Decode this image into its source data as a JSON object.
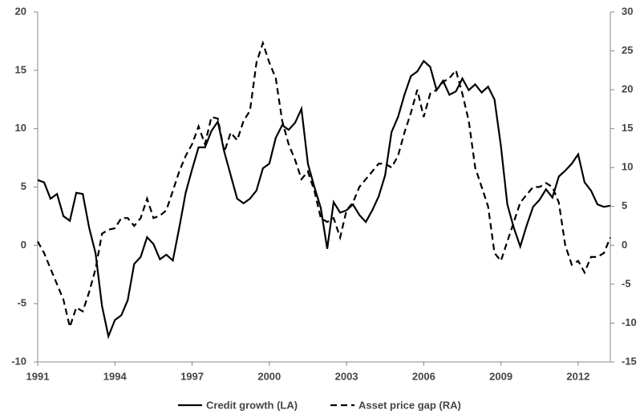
{
  "chart_data": {
    "type": "line",
    "x": [
      1991,
      1991.25,
      1991.5,
      1991.75,
      1992,
      1992.25,
      1992.5,
      1992.75,
      1993,
      1993.25,
      1993.5,
      1993.75,
      1994,
      1994.25,
      1994.5,
      1994.75,
      1995,
      1995.25,
      1995.5,
      1995.75,
      1996,
      1996.25,
      1996.5,
      1996.75,
      1997,
      1997.25,
      1997.5,
      1997.75,
      1998,
      1998.25,
      1998.5,
      1998.75,
      1999,
      1999.25,
      1999.5,
      1999.75,
      2000,
      2000.25,
      2000.5,
      2000.75,
      2001,
      2001.25,
      2001.5,
      2001.75,
      2002,
      2002.25,
      2002.5,
      2002.75,
      2003,
      2003.25,
      2003.5,
      2003.75,
      2004,
      2004.25,
      2004.5,
      2004.75,
      2005,
      2005.25,
      2005.5,
      2005.75,
      2006,
      2006.25,
      2006.5,
      2006.75,
      2007,
      2007.25,
      2007.5,
      2007.75,
      2008,
      2008.25,
      2008.5,
      2008.75,
      2009,
      2009.25,
      2009.5,
      2009.75,
      2010,
      2010.25,
      2010.5,
      2010.75,
      2011,
      2011.25,
      2011.5,
      2011.75,
      2012,
      2012.25,
      2012.5,
      2012.75,
      2013,
      2013.25
    ],
    "series": [
      {
        "name": "Credit growth (LA)",
        "color": "#000000",
        "line_style": "solid",
        "axis": "y",
        "values": [
          5.6,
          5.4,
          4.0,
          4.4,
          2.5,
          2.1,
          4.5,
          4.4,
          1.5,
          -0.7,
          -5.2,
          -7.8,
          -6.4,
          -6.0,
          -4.7,
          -1.6,
          -1.0,
          0.7,
          0.1,
          -1.2,
          -0.8,
          -1.3,
          1.5,
          4.5,
          6.5,
          8.4,
          8.4,
          9.8,
          10.6,
          8.0,
          6.0,
          4.0,
          3.6,
          4.0,
          4.7,
          6.6,
          7.0,
          9.2,
          10.3,
          9.9,
          10.5,
          11.7,
          7.0,
          5.0,
          3.2,
          -0.3,
          3.7,
          2.8,
          3.0,
          3.5,
          2.6,
          2.0,
          3.0,
          4.2,
          6.0,
          9.7,
          11.0,
          12.9,
          14.5,
          14.9,
          15.8,
          15.3,
          13.3,
          14.1,
          12.9,
          13.2,
          14.3,
          13.3,
          13.8,
          13.1,
          13.6,
          12.5,
          8.5,
          3.5,
          1.5,
          -0.1,
          1.7,
          3.3,
          3.9,
          4.8,
          4.1,
          5.9,
          6.4,
          7.0,
          7.8,
          5.4,
          4.7,
          3.5,
          3.3,
          3.4
        ]
      },
      {
        "name": "Asset price gap (RA)",
        "color": "#000000",
        "line_style": "dashed",
        "axis": "y2",
        "values": [
          0.5,
          -1,
          -3,
          -5,
          -7,
          -10.5,
          -8,
          -8.5,
          -6,
          -3,
          1.5,
          2,
          2.2,
          3.5,
          3.5,
          2.5,
          3.5,
          6,
          3.5,
          3.8,
          4.5,
          7,
          9.5,
          11.5,
          13,
          15.3,
          13,
          16.5,
          16.3,
          12,
          14.5,
          13.5,
          16,
          17.3,
          23.5,
          26,
          23.5,
          21.5,
          16,
          13,
          11,
          8.5,
          9.5,
          7,
          3.5,
          3,
          3.5,
          1,
          4.5,
          5.5,
          7.5,
          8.5,
          9.5,
          10.5,
          10.5,
          10,
          11.5,
          14.5,
          17,
          20,
          16.5,
          19.5,
          20,
          21,
          21.5,
          22.5,
          19.5,
          16,
          10,
          7.5,
          5,
          -1,
          -2,
          0.5,
          3,
          5.5,
          6.5,
          7.5,
          7.5,
          8,
          7.5,
          5.5,
          0,
          -2.5,
          -2,
          -3.5,
          -1.5,
          -1.5,
          -1,
          1
        ]
      }
    ],
    "xlim": [
      1991,
      2013.25
    ],
    "xticks": [
      1991,
      1994,
      1997,
      2000,
      2003,
      2006,
      2009,
      2012
    ],
    "ylim": [
      -10,
      20
    ],
    "yticks": [
      -10,
      -5,
      0,
      5,
      10,
      15,
      20
    ],
    "y2lim": [
      -15,
      30
    ],
    "y2ticks": [
      -15,
      -10,
      -5,
      0,
      5,
      10,
      15,
      20,
      25,
      30
    ],
    "grid": false,
    "legend": "bottom"
  }
}
